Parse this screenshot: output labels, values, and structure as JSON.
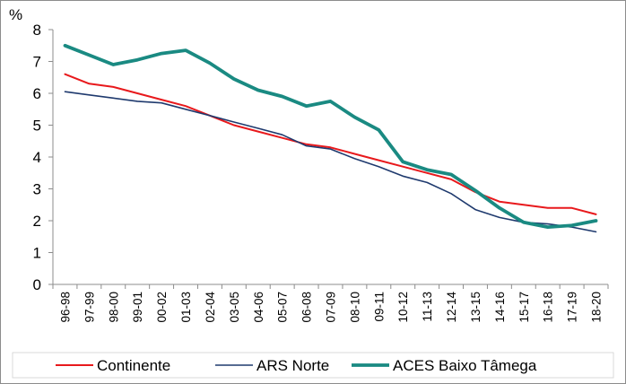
{
  "chart_data": {
    "type": "line",
    "title": "",
    "xlabel": "",
    "ylabel": "%",
    "ylim": [
      0,
      8
    ],
    "yticks": [
      "0",
      "1",
      "2",
      "3",
      "4",
      "5",
      "6",
      "7",
      "8"
    ],
    "grid": false,
    "legend_position": "bottom",
    "categories": [
      "96-98",
      "97-99",
      "98-00",
      "99-01",
      "00-02",
      "01-03",
      "02-04",
      "03-05",
      "04-06",
      "05-07",
      "06-08",
      "07-09",
      "08-10",
      "09-11",
      "10-12",
      "11-13",
      "12-14",
      "13-15",
      "14-16",
      "15-17",
      "16-18",
      "17-19",
      "18-20"
    ],
    "series": [
      {
        "name": "Continente",
        "color": "#e8191c",
        "values": [
          6.6,
          6.3,
          6.2,
          6.0,
          5.8,
          5.6,
          5.3,
          5.0,
          4.8,
          4.6,
          4.4,
          4.3,
          4.1,
          3.9,
          3.7,
          3.5,
          3.3,
          2.9,
          2.6,
          2.5,
          2.4,
          2.4,
          2.2
        ]
      },
      {
        "name": "ARS Norte",
        "color": "#1f3a6e",
        "values": [
          6.05,
          5.95,
          5.85,
          5.75,
          5.7,
          5.5,
          5.3,
          5.1,
          4.9,
          4.7,
          4.35,
          4.25,
          3.95,
          3.7,
          3.4,
          3.2,
          2.85,
          2.35,
          2.1,
          1.95,
          1.9,
          1.8,
          1.65
        ]
      },
      {
        "name": "ACES Baixo Tâmega",
        "color": "#1a8a82",
        "values": [
          7.5,
          7.2,
          6.9,
          7.05,
          7.25,
          7.35,
          6.95,
          6.45,
          6.1,
          5.9,
          5.6,
          5.75,
          5.25,
          4.85,
          3.85,
          3.6,
          3.45,
          2.95,
          2.4,
          1.95,
          1.8,
          1.85,
          2.0
        ]
      }
    ]
  }
}
